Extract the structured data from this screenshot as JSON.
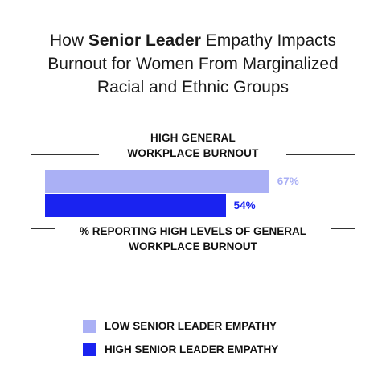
{
  "chart_data": {
    "type": "bar",
    "orientation": "horizontal",
    "title": {
      "line1_prefix": "How ",
      "line1_bold": "Senior Leader",
      "line1_suffix": " Empathy Impacts",
      "line2": "Burnout for Women From Marginalized",
      "line3": "Racial and Ethnic Groups"
    },
    "category": {
      "line1": "HIGH GENERAL",
      "line2": "WORKPLACE BURNOUT"
    },
    "xlabel": {
      "line1": "% REPORTING HIGH LEVELS OF GENERAL",
      "line2": "WORKPLACE BURNOUT"
    },
    "xlim": [
      0,
      100
    ],
    "series": [
      {
        "name": "LOW SENIOR LEADER EMPATHY",
        "value": 67,
        "label": "67%",
        "color": "#aab0f5"
      },
      {
        "name": "HIGH SENIOR LEADER EMPATHY",
        "value": 54,
        "label": "54%",
        "color": "#1a23f0"
      }
    ],
    "legend_position": "bottom-left"
  }
}
